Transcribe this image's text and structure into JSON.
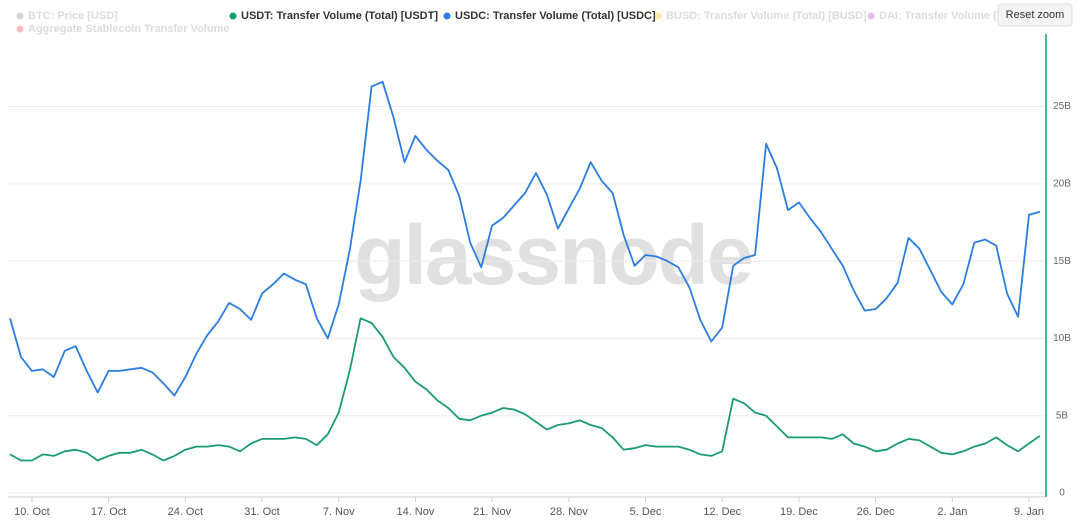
{
  "chart_data": {
    "type": "line",
    "watermark": "glassnode",
    "reset_button": "Reset zoom",
    "categories": [
      null,
      null,
      "10. Oct",
      null,
      null,
      null,
      null,
      null,
      null,
      "17. Oct",
      null,
      null,
      null,
      null,
      null,
      null,
      "24. Oct",
      null,
      null,
      null,
      null,
      null,
      null,
      "31. Oct",
      null,
      null,
      null,
      null,
      null,
      null,
      "7. Nov",
      null,
      null,
      null,
      null,
      null,
      null,
      "14. Nov",
      null,
      null,
      null,
      null,
      null,
      null,
      "21. Nov",
      null,
      null,
      null,
      null,
      null,
      null,
      "28. Nov",
      null,
      null,
      null,
      null,
      null,
      null,
      "5. Dec",
      null,
      null,
      null,
      null,
      null,
      null,
      "12. Dec",
      null,
      null,
      null,
      null,
      null,
      null,
      "19. Dec",
      null,
      null,
      null,
      null,
      null,
      null,
      "26. Dec",
      null,
      null,
      null,
      null,
      null,
      null,
      "2. Jan",
      null,
      null,
      null,
      null,
      null,
      null,
      "9. Jan",
      null
    ],
    "series": [
      {
        "name": "BTC: Price [USD]",
        "color": "#8a8a8a",
        "visible": false
      },
      {
        "name": "USDT: Transfer Volume (Total) [USDT]",
        "color": "#1a9c6c",
        "visible": true,
        "values": [
          2500000000.0,
          2100000000.0,
          2100000000.0,
          2500000000.0,
          2400000000.0,
          2700000000.0,
          2800000000.0,
          2600000000.0,
          2100000000.0,
          2400000000.0,
          2600000000.0,
          2600000000.0,
          2800000000.0,
          2500000000.0,
          2100000000.0,
          2400000000.0,
          2800000000.0,
          3000000000.0,
          3000000000.0,
          3100000000.0,
          3000000000.0,
          2700000000.0,
          3200000000.0,
          3500000000.0,
          3500000000.0,
          3500000000.0,
          3600000000.0,
          3500000000.0,
          3100000000.0,
          3800000000.0,
          5200000000.0,
          7900000000.0,
          11300000000.0,
          11000000000.0,
          10100000000.0,
          8800000000.0,
          8100000000.0,
          7200000000.0,
          6700000000.0,
          6000000000.0,
          5500000000.0,
          4800000000.0,
          4700000000.0,
          5000000000.0,
          5200000000.0,
          5500000000.0,
          5400000000.0,
          5100000000.0,
          4600000000.0,
          4100000000.0,
          4400000000.0,
          4500000000.0,
          4700000000.0,
          4400000000.0,
          4200000000.0,
          3600000000.0,
          2800000000.0,
          2900000000.0,
          3100000000.0,
          3000000000.0,
          3000000000.0,
          3000000000.0,
          2800000000.0,
          2500000000.0,
          2400000000.0,
          2700000000.0,
          6100000000.0,
          5800000000.0,
          5200000000.0,
          5000000000.0,
          4300000000.0,
          3600000000.0,
          3600000000.0,
          3600000000.0,
          3600000000.0,
          3500000000.0,
          3800000000.0,
          3200000000.0,
          3000000000.0,
          2700000000.0,
          2800000000.0,
          3200000000.0,
          3500000000.0,
          3400000000.0,
          3000000000.0,
          2600000000.0,
          2500000000.0,
          2700000000.0,
          3000000000.0,
          3200000000.0,
          3600000000.0,
          3100000000.0,
          2700000000.0,
          3200000000.0,
          3700000000.0
        ]
      },
      {
        "name": "USDC: Transfer Volume (Total) [USDC]",
        "color": "#2a7de1",
        "visible": true,
        "values": [
          11300000000.0,
          8800000000.0,
          7900000000.0,
          8000000000.0,
          7500000000.0,
          9200000000.0,
          9500000000.0,
          7900000000.0,
          6500000000.0,
          7900000000.0,
          7900000000.0,
          8000000000.0,
          8100000000.0,
          7800000000.0,
          7100000000.0,
          6300000000.0,
          7500000000.0,
          9000000000.0,
          10200000000.0,
          11100000000.0,
          12300000000.0,
          11900000000.0,
          11200000000.0,
          12900000000.0,
          13500000000.0,
          14200000000.0,
          13800000000.0,
          13500000000.0,
          11300000000.0,
          10000000000.0,
          12200000000.0,
          15700000000.0,
          20200000000.0,
          26300000000.0,
          26600000000.0,
          24300000000.0,
          21400000000.0,
          23100000000.0,
          22200000000.0,
          21500000000.0,
          20900000000.0,
          19200000000.0,
          16200000000.0,
          14600000000.0,
          17300000000.0,
          17800000000.0,
          18600000000.0,
          19400000000.0,
          20700000000.0,
          19300000000.0,
          17100000000.0,
          18400000000.0,
          19700000000.0,
          21400000000.0,
          20200000000.0,
          19400000000.0,
          16700000000.0,
          14700000000.0,
          15400000000.0,
          15300000000.0,
          15000000000.0,
          14600000000.0,
          13300000000.0,
          11200000000.0,
          9800000000.0,
          10700000000.0,
          14700000000.0,
          15200000000.0,
          15400000000.0,
          22600000000.0,
          21000000000.0,
          18300000000.0,
          18800000000.0,
          17800000000.0,
          16900000000.0,
          15800000000.0,
          14700000000.0,
          13100000000.0,
          11800000000.0,
          11900000000.0,
          12600000000.0,
          13600000000.0,
          16500000000.0,
          15800000000.0,
          14400000000.0,
          13000000000.0,
          12200000000.0,
          13500000000.0,
          16200000000.0,
          16400000000.0,
          16000000000.0,
          12900000000.0,
          11400000000.0,
          18000000000.0,
          18200000000.0
        ]
      },
      {
        "name": "BUSD: Transfer Volume (Total) [BUSD]",
        "color": "#f0b90b",
        "visible": false
      },
      {
        "name": "DAI: Transfer Volume (Tot",
        "color": "#b244f0",
        "visible": false
      },
      {
        "name": "Aggregate Stablecoin Transfer Volume",
        "color": "#f04848",
        "visible": false
      }
    ],
    "ylim": [
      0,
      29500000000.0
    ],
    "yticks": [
      0,
      {
        "value": 5000000000.0,
        "label": "5B"
      },
      {
        "value": 10000000000.0,
        "label": "10B"
      },
      {
        "value": 15000000000.0,
        "label": "15B"
      },
      {
        "value": 20000000000.0,
        "label": "20B"
      },
      {
        "value": 25000000000.0,
        "label": "25B"
      }
    ],
    "axis_color": "#1a9c6c",
    "grid": true
  }
}
